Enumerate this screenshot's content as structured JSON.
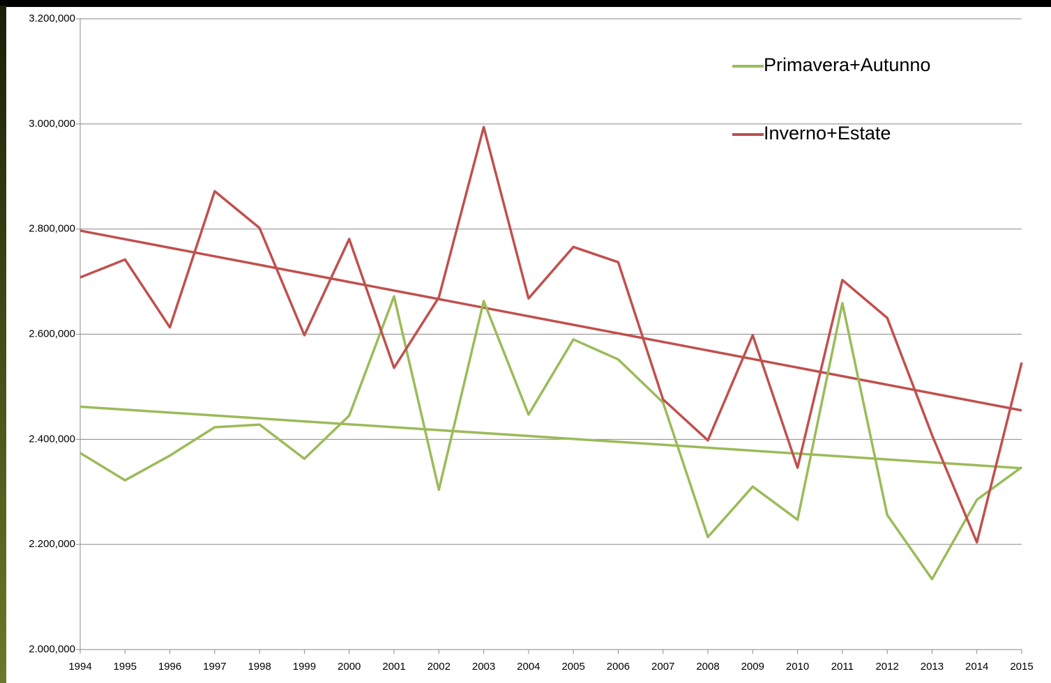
{
  "chart_data": {
    "type": "line",
    "categories": [
      "1994",
      "1995",
      "1996",
      "1997",
      "1998",
      "1999",
      "2000",
      "2001",
      "2002",
      "2003",
      "2004",
      "2005",
      "2006",
      "2007",
      "2008",
      "2009",
      "2010",
      "2011",
      "2012",
      "2013",
      "2014",
      "2015"
    ],
    "series": [
      {
        "name": "Primavera+Autunno",
        "color": "#9bbb59",
        "values": [
          2374000,
          2322000,
          2369000,
          2423000,
          2428000,
          2363000,
          2445000,
          2672000,
          2304000,
          2663000,
          2447000,
          2590000,
          2552000,
          2470000,
          2214000,
          2310000,
          2247000,
          2659000,
          2256000,
          2134000,
          2285000,
          2347000
        ]
      },
      {
        "name": "Inverno+Estate",
        "color": "#c0504d",
        "values": [
          2708000,
          2742000,
          2613000,
          2872000,
          2802000,
          2598000,
          2781000,
          2536000,
          2670000,
          2994000,
          2668000,
          2766000,
          2737000,
          2476000,
          2398000,
          2598000,
          2346000,
          2703000,
          2631000,
          2408000,
          2204000,
          2546000
        ]
      }
    ],
    "trendlines": [
      {
        "color": "#9bbb59",
        "values": [
          2462000,
          2345000
        ]
      },
      {
        "color": "#c0504d",
        "values": [
          2797000,
          2455000
        ]
      }
    ],
    "ylim": [
      2000000,
      3200000
    ],
    "yticks": [
      {
        "value": 2000000,
        "label": "2.000,000"
      },
      {
        "value": 2200000,
        "label": "2.200,000"
      },
      {
        "value": 2400000,
        "label": "2.400,000"
      },
      {
        "value": 2600000,
        "label": "2.600,000"
      },
      {
        "value": 2800000,
        "label": "2.800,000"
      },
      {
        "value": 3000000,
        "label": "3.000,000"
      },
      {
        "value": 3200000,
        "label": "3.200,000"
      }
    ],
    "grid": true,
    "legend": "upper right"
  }
}
